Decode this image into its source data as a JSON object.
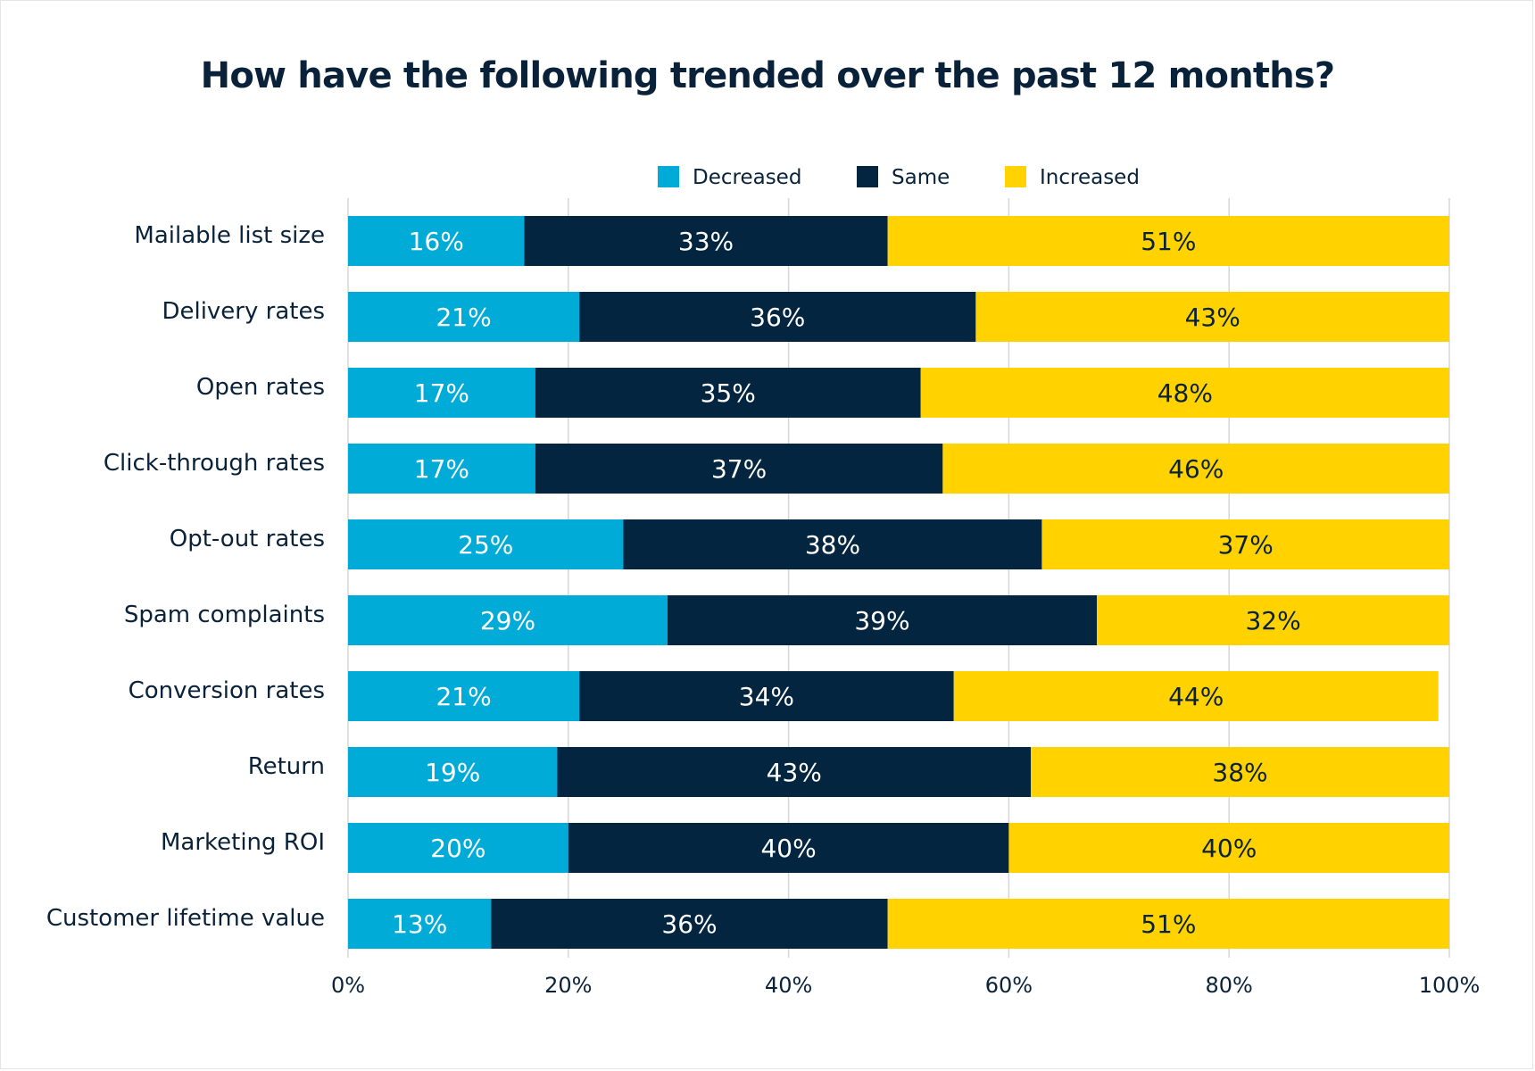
{
  "chart_data": {
    "type": "bar",
    "orientation": "horizontal",
    "stacked": true,
    "title": "How have the following trended over the past 12 months?",
    "categories": [
      "Mailable list size",
      "Delivery rates",
      "Open rates",
      "Click-through rates",
      "Opt-out rates",
      "Spam complaints",
      "Conversion rates",
      "Return",
      "Marketing ROI",
      "Customer lifetime value"
    ],
    "series": [
      {
        "name": "Decreased",
        "color": "#00acd7",
        "label_color": "#ffffff",
        "values": [
          16,
          21,
          17,
          17,
          25,
          29,
          21,
          19,
          20,
          13
        ]
      },
      {
        "name": "Same",
        "color": "#03253f",
        "label_color": "#ffffff",
        "values": [
          33,
          36,
          35,
          37,
          38,
          39,
          34,
          43,
          40,
          36
        ]
      },
      {
        "name": "Increased",
        "color": "#ffd200",
        "label_color": "#0a2239",
        "values": [
          51,
          43,
          48,
          46,
          37,
          32,
          44,
          38,
          40,
          51
        ]
      }
    ],
    "value_suffix": "%",
    "xlim": [
      0,
      100
    ],
    "xticks": [
      "0%",
      "20%",
      "40%",
      "60%",
      "80%",
      "100%"
    ],
    "grid": true,
    "legend_position": "top"
  }
}
